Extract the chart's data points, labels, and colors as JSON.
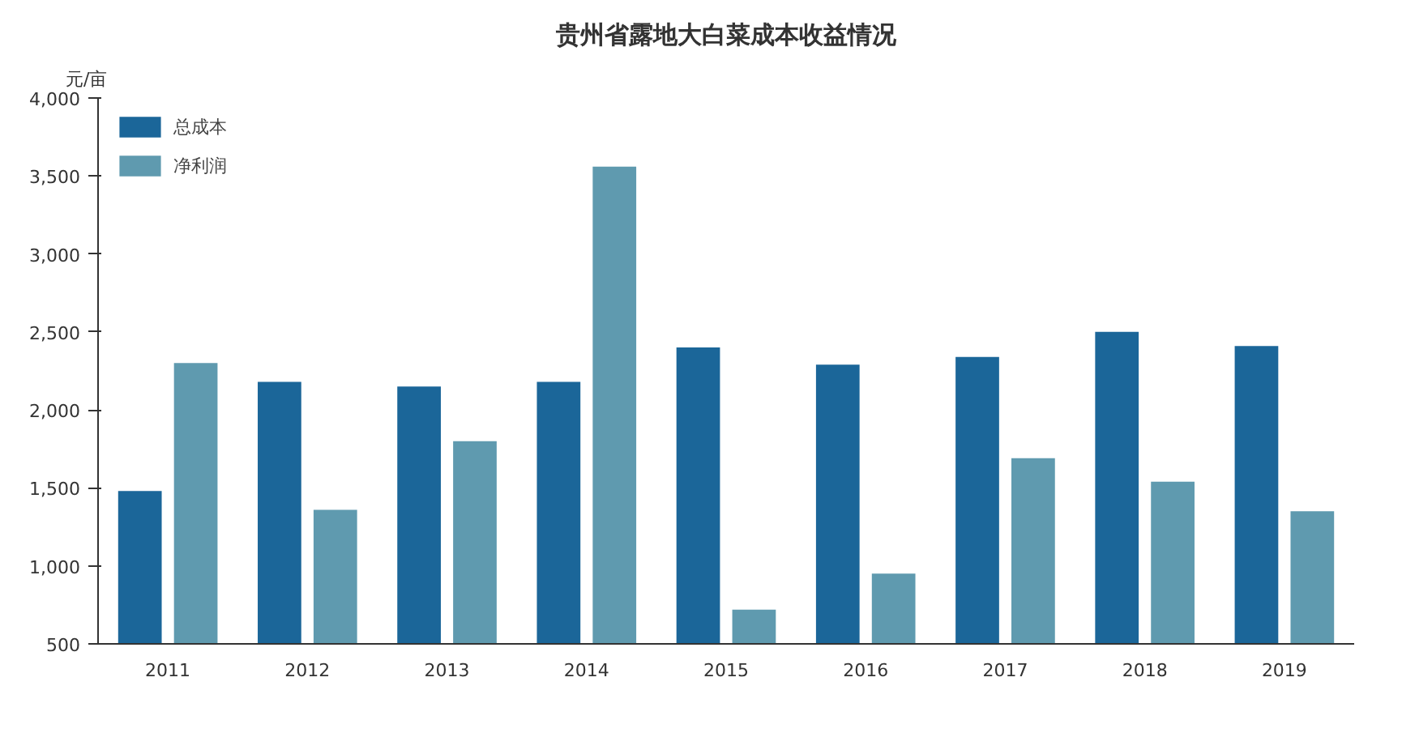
{
  "chart_data": {
    "type": "bar",
    "title": "贵州省露地大白菜成本收益情况",
    "ylabel": "元/亩",
    "categories": [
      "2011",
      "2012",
      "2013",
      "2014",
      "2015",
      "2016",
      "2017",
      "2018",
      "2019"
    ],
    "series": [
      {
        "name": "总成本",
        "color": "#1b6699",
        "values": [
          1480,
          2180,
          2150,
          2180,
          2400,
          2290,
          2340,
          2500,
          2410
        ]
      },
      {
        "name": "净利润",
        "color": "#5f9aaf",
        "values": [
          2300,
          1360,
          1800,
          3560,
          720,
          950,
          1690,
          1540,
          1350
        ]
      }
    ],
    "ylim": [
      500,
      4000
    ],
    "yticks": [
      500,
      {
        "value": 1000,
        "label": "1,000"
      },
      {
        "value": 1500,
        "label": "1,500"
      },
      {
        "value": 2000,
        "label": "2,000"
      },
      {
        "value": 2500,
        "label": "2,500"
      },
      {
        "value": 3000,
        "label": "3,000"
      },
      {
        "value": 3500,
        "label": "3,500"
      },
      {
        "value": 4000,
        "label": "4,000"
      }
    ],
    "grid": false,
    "legend": "top left"
  }
}
